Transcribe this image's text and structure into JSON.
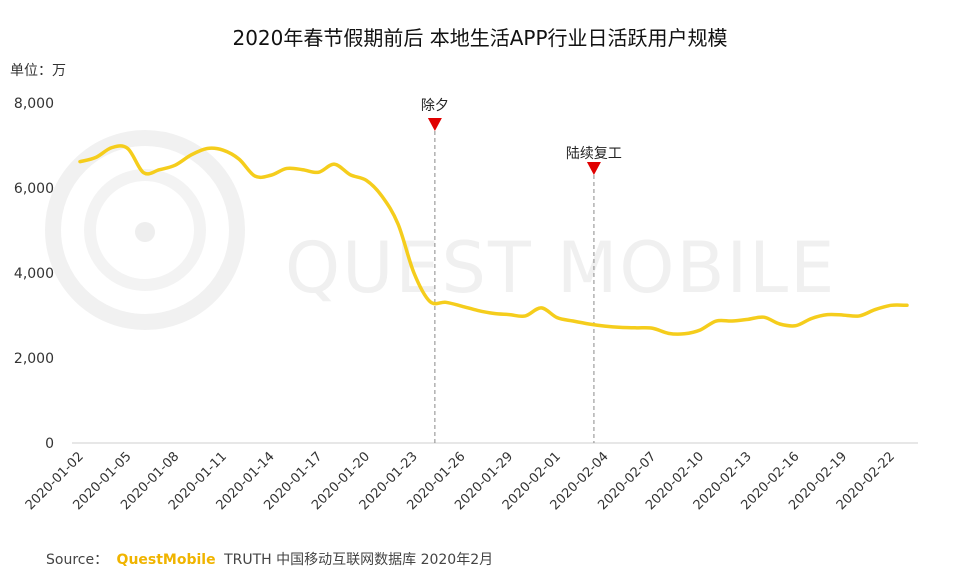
{
  "chart_data": {
    "type": "line",
    "title": "2020年春节假期前后 本地生活APP行业日活跃用户规模",
    "unit_label": "单位：万",
    "ylim": [
      0,
      8000
    ],
    "y_ticks": [
      "0",
      "2,000",
      "4,000",
      "6,000",
      "8,000"
    ],
    "y_tick_values": [
      0,
      2000,
      4000,
      6000,
      8000
    ],
    "x_tick_labels": [
      "2020-01-02",
      "2020-01-05",
      "2020-01-08",
      "2020-01-11",
      "2020-01-14",
      "2020-01-17",
      "2020-01-20",
      "2020-01-23",
      "2020-01-26",
      "2020-01-29",
      "2020-02-01",
      "2020-02-04",
      "2020-02-07",
      "2020-02-10",
      "2020-02-13",
      "2020-02-16",
      "2020-02-19",
      "2020-02-22"
    ],
    "grid": false,
    "legend": "none",
    "line_color": "#f5cd1c",
    "x": [
      "2020-01-02",
      "2020-01-03",
      "2020-01-04",
      "2020-01-05",
      "2020-01-06",
      "2020-01-07",
      "2020-01-08",
      "2020-01-09",
      "2020-01-10",
      "2020-01-11",
      "2020-01-12",
      "2020-01-13",
      "2020-01-14",
      "2020-01-15",
      "2020-01-16",
      "2020-01-17",
      "2020-01-18",
      "2020-01-19",
      "2020-01-20",
      "2020-01-21",
      "2020-01-22",
      "2020-01-23",
      "2020-01-24",
      "2020-01-25",
      "2020-01-26",
      "2020-01-27",
      "2020-01-28",
      "2020-01-29",
      "2020-01-30",
      "2020-01-31",
      "2020-02-01",
      "2020-02-02",
      "2020-02-03",
      "2020-02-04",
      "2020-02-05",
      "2020-02-06",
      "2020-02-07",
      "2020-02-08",
      "2020-02-09",
      "2020-02-10",
      "2020-02-11",
      "2020-02-12",
      "2020-02-13",
      "2020-02-14",
      "2020-02-15",
      "2020-02-16",
      "2020-02-17",
      "2020-02-18",
      "2020-02-19",
      "2020-02-20",
      "2020-02-21",
      "2020-02-22",
      "2020-02-23"
    ],
    "values": [
      6620,
      6720,
      6950,
      6930,
      6360,
      6430,
      6540,
      6780,
      6930,
      6890,
      6680,
      6280,
      6300,
      6460,
      6430,
      6370,
      6560,
      6310,
      6180,
      5800,
      5150,
      4000,
      3330,
      3310,
      3220,
      3120,
      3050,
      3020,
      2990,
      3180,
      2950,
      2870,
      2800,
      2750,
      2720,
      2710,
      2700,
      2580,
      2570,
      2660,
      2870,
      2870,
      2910,
      2960,
      2800,
      2760,
      2930,
      3020,
      3010,
      2990,
      3140,
      3240,
      3240
    ],
    "annotations": [
      {
        "label": "除夕",
        "x": "2020-01-24",
        "marker_color": "#e00000"
      },
      {
        "label": "陆续复工",
        "x": "2020-02-03",
        "marker_color": "#e00000"
      }
    ],
    "source": {
      "prefix": "Source：",
      "brand": "QuestMobile",
      "suffix": "TRUTH 中国移动互联网数据库 2020年2月"
    },
    "watermark": "QUEST MOBILE"
  }
}
